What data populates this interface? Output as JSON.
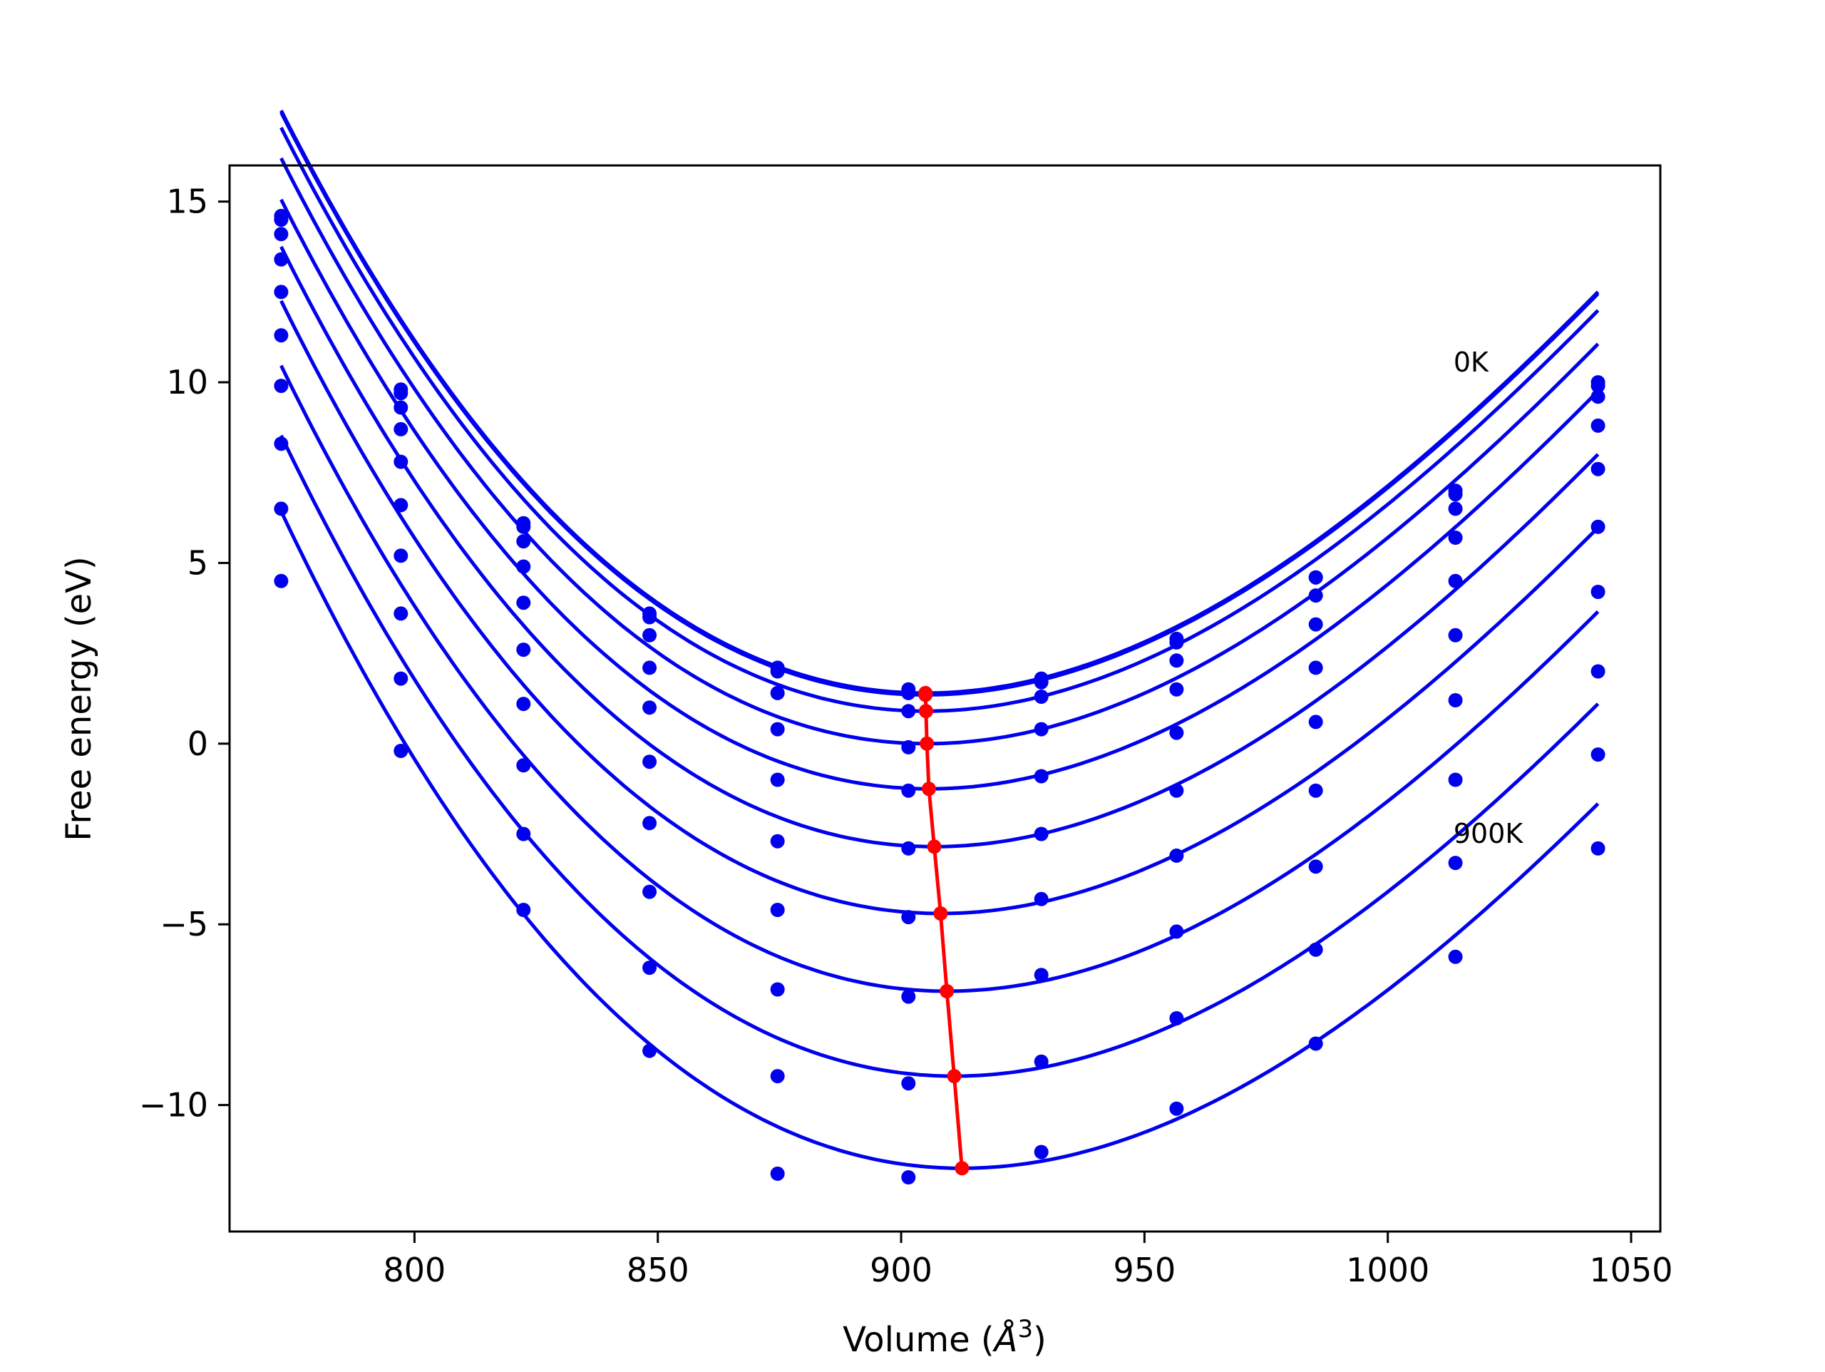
{
  "chart_data": {
    "type": "line",
    "xlabel": "Volume (",
    "xlabel_unit_base": "Å",
    "xlabel_unit_exp": "3",
    "xlabel_close": ")",
    "ylabel": "Free energy (eV)",
    "xlim": [
      762,
      1056
    ],
    "ylim": [
      -13.5,
      16
    ],
    "xticks": [
      800,
      850,
      900,
      950,
      1000,
      1050
    ],
    "yticks": [
      15,
      10,
      5,
      0,
      -5,
      -10
    ],
    "ytick_labels": [
      "15",
      "10",
      "5",
      "0",
      "−5",
      "−10"
    ],
    "grid": false,
    "legend": "none",
    "colors": {
      "curves": "#0000ee",
      "minima": "#ff0000",
      "axes": "#000000"
    },
    "annotations": [
      {
        "text": "0K",
        "x": 1013.5,
        "y": 10.3
      },
      {
        "text": "900K",
        "x": 1013.5,
        "y": -2.75
      }
    ],
    "volumes": [
      772.6,
      797.2,
      822.4,
      848.3,
      874.6,
      901.5,
      928.8,
      956.6,
      985.2,
      1013.9,
      1043.2
    ],
    "series": [
      {
        "fit": {
          "v0": 905.0,
          "e0": 1.4,
          "a": 0.000754,
          "b": 1.25e-06
        },
        "points": [
          14.6,
          9.8,
          6.1,
          3.6,
          2.1,
          1.5,
          1.8,
          2.9,
          4.6,
          7.0,
          10.0
        ]
      },
      {
        "fit": {
          "v0": 905.0,
          "e0": 1.35,
          "a": 0.000754,
          "b": 1.25e-06
        },
        "points": [
          14.5,
          9.7,
          6.0,
          3.5,
          2.0,
          1.4,
          1.7,
          2.8,
          4.6,
          6.9,
          9.9
        ]
      },
      {
        "fit": {
          "v0": 905.1,
          "e0": 0.9,
          "a": 0.000754,
          "b": 1.25e-06
        },
        "points": [
          14.1,
          9.3,
          5.6,
          3.0,
          1.4,
          0.9,
          1.3,
          2.3,
          4.1,
          6.5,
          9.6
        ]
      },
      {
        "fit": {
          "v0": 905.3,
          "e0": 0.0,
          "a": 0.000754,
          "b": 1.25e-06
        },
        "points": [
          13.4,
          8.7,
          4.9,
          2.1,
          0.4,
          -0.1,
          0.4,
          1.5,
          3.3,
          5.7,
          8.8
        ]
      },
      {
        "fit": {
          "v0": 905.7,
          "e0": -1.25,
          "a": 0.000754,
          "b": 1.25e-06
        },
        "points": [
          12.5,
          7.8,
          3.9,
          1.0,
          -1.0,
          -1.3,
          -0.9,
          0.3,
          2.1,
          4.5,
          7.6
        ]
      },
      {
        "fit": {
          "v0": 906.8,
          "e0": -2.85,
          "a": 0.000754,
          "b": 1.25e-06
        },
        "points": [
          11.3,
          6.6,
          2.6,
          -0.5,
          -2.7,
          -2.9,
          -2.5,
          -1.3,
          0.6,
          3.0,
          6.0
        ]
      },
      {
        "fit": {
          "v0": 908.1,
          "e0": -4.7,
          "a": 0.000754,
          "b": 1.25e-06
        },
        "points": [
          9.9,
          5.2,
          1.1,
          -2.2,
          -4.6,
          -4.8,
          -4.3,
          -3.1,
          -1.3,
          1.2,
          4.2
        ]
      },
      {
        "fit": {
          "v0": 909.4,
          "e0": -6.85,
          "a": 0.000754,
          "b": 1.25e-06
        },
        "points": [
          8.3,
          3.6,
          -0.6,
          -4.1,
          -6.8,
          -7.0,
          -6.4,
          -5.2,
          -3.4,
          -1.0,
          2.0
        ]
      },
      {
        "fit": {
          "v0": 910.9,
          "e0": -9.2,
          "a": 0.000754,
          "b": 1.25e-06
        },
        "points": [
          6.5,
          1.8,
          -2.5,
          -6.2,
          -9.2,
          -9.4,
          -8.8,
          -7.6,
          -5.7,
          -3.3,
          -0.3
        ]
      },
      {
        "fit": {
          "v0": 912.5,
          "e0": -11.75,
          "a": 0.000754,
          "b": 1.25e-06
        },
        "points": [
          4.5,
          -0.2,
          -4.6,
          -8.5,
          -11.9,
          -12.0,
          -11.3,
          -10.1,
          -8.3,
          -5.9,
          -2.9
        ]
      }
    ],
    "minima": [
      [
        905.0,
        1.4
      ],
      [
        905.0,
        1.35
      ],
      [
        905.1,
        0.9
      ],
      [
        905.3,
        0.0
      ],
      [
        905.7,
        -1.25
      ],
      [
        906.8,
        -2.85
      ],
      [
        908.1,
        -4.7
      ],
      [
        909.4,
        -6.85
      ],
      [
        910.9,
        -9.2
      ],
      [
        912.5,
        -11.75
      ]
    ]
  }
}
